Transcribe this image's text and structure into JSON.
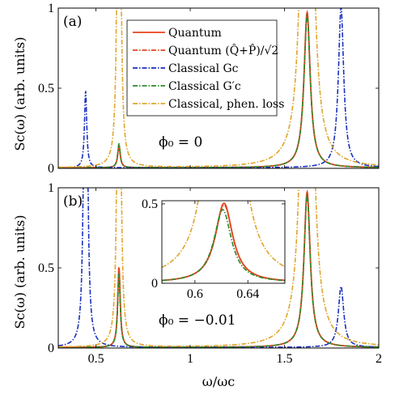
{
  "chart_data": [
    {
      "type": "line",
      "panel_label": "(a)",
      "annotation": "ϕ₀ = 0",
      "xlabel": "ω/ωc",
      "ylabel": "Sc(ω) (arb. units)",
      "xlim": [
        0.3,
        2.0
      ],
      "ylim": [
        0,
        1.0
      ],
      "y_ticks": [
        "0",
        "0.5",
        "1"
      ],
      "x_ticks": [],
      "grid": false,
      "legend_position": "top-center",
      "legend": [
        {
          "label": "Quantum",
          "color": "#e8431d",
          "style": "solid"
        },
        {
          "label": "Quantum (Q̂+P̂)/√2",
          "color": "#e8431d",
          "style": "dashdot"
        },
        {
          "label": "Classical Gc",
          "color": "#1a2fbf",
          "style": "dashdot"
        },
        {
          "label": "Classical G′c",
          "color": "#2a8a2a",
          "style": "dashdot"
        },
        {
          "label": "Classical, phen. loss",
          "color": "#e0a52b",
          "style": "dashdot"
        }
      ],
      "series": [
        {
          "name": "Quantum",
          "color": "#e8431d",
          "peaks": [
            {
              "x0": 0.622,
              "height": 0.14,
              "gamma": 0.008
            },
            {
              "x0": 1.62,
              "height": 0.97,
              "gamma": 0.02
            }
          ]
        },
        {
          "name": "Quantum (Q̂+P̂)/√2",
          "color": "#e8431d",
          "peaks": [
            {
              "x0": 0.622,
              "height": 0.14,
              "gamma": 0.008
            },
            {
              "x0": 1.62,
              "height": 0.96,
              "gamma": 0.02
            }
          ]
        },
        {
          "name": "Classical Gc",
          "color": "#1a2fbf",
          "peaks": [
            {
              "x0": 0.445,
              "height": 0.48,
              "gamma": 0.007
            },
            {
              "x0": 1.8,
              "height": 1.0,
              "gamma": 0.017
            }
          ]
        },
        {
          "name": "Classical G′c",
          "color": "#2a8a2a",
          "peaks": [
            {
              "x0": 0.622,
              "height": 0.15,
              "gamma": 0.008
            },
            {
              "x0": 1.62,
              "height": 0.95,
              "gamma": 0.02
            }
          ]
        },
        {
          "name": "Classical, phen. loss",
          "color": "#e0a52b",
          "peaks": [
            {
              "x0": 0.622,
              "height": 6.0,
              "gamma": 0.006
            },
            {
              "x0": 1.62,
              "height": 6.0,
              "gamma": 0.02
            }
          ]
        }
      ]
    },
    {
      "type": "line",
      "panel_label": "(b)",
      "annotation": "ϕ₀ = −0.01",
      "xlabel": "ω/ωc",
      "ylabel": "Sc(ω) (arb. units)",
      "xlim": [
        0.3,
        2.0
      ],
      "ylim": [
        0,
        1.0
      ],
      "y_ticks": [
        "0",
        "0.5",
        "1"
      ],
      "x_ticks": [
        "0.5",
        "1",
        "1.5",
        "2"
      ],
      "grid": false,
      "series": [
        {
          "name": "Quantum",
          "color": "#e8431d",
          "peaks": [
            {
              "x0": 0.622,
              "height": 0.5,
              "gamma": 0.008
            },
            {
              "x0": 1.62,
              "height": 0.97,
              "gamma": 0.02
            }
          ]
        },
        {
          "name": "Quantum (Q̂+P̂)/√2",
          "color": "#e8431d",
          "peaks": [
            {
              "x0": 0.622,
              "height": 0.49,
              "gamma": 0.008
            },
            {
              "x0": 1.62,
              "height": 0.96,
              "gamma": 0.02
            }
          ]
        },
        {
          "name": "Classical Gc",
          "color": "#1a2fbf",
          "peaks": [
            {
              "x0": 0.445,
              "height": 6.0,
              "gamma": 0.006
            },
            {
              "x0": 1.8,
              "height": 0.38,
              "gamma": 0.017
            }
          ]
        },
        {
          "name": "Classical G′c",
          "color": "#2a8a2a",
          "peaks": [
            {
              "x0": 0.622,
              "height": 0.46,
              "gamma": 0.008
            },
            {
              "x0": 1.62,
              "height": 0.95,
              "gamma": 0.02
            }
          ]
        },
        {
          "name": "Classical, phen. loss",
          "color": "#e0a52b",
          "peaks": [
            {
              "x0": 0.622,
              "height": 6.0,
              "gamma": 0.006
            },
            {
              "x0": 1.62,
              "height": 6.0,
              "gamma": 0.02
            }
          ]
        }
      ]
    },
    {
      "type": "line",
      "panel_label": "inset",
      "xlim": [
        0.575,
        0.668
      ],
      "ylim": [
        0,
        0.52
      ],
      "y_ticks": [
        "0",
        "0.5"
      ],
      "x_ticks": [
        "0.6",
        "0.64"
      ],
      "grid": false,
      "series": [
        {
          "name": "Quantum",
          "color": "#e8431d",
          "peaks": [
            {
              "x0": 0.622,
              "height": 0.5,
              "gamma": 0.008
            }
          ]
        },
        {
          "name": "Quantum (Q̂+P̂)/√2",
          "color": "#e8431d",
          "peaks": [
            {
              "x0": 0.622,
              "height": 0.49,
              "gamma": 0.008
            }
          ]
        },
        {
          "name": "Classical G′c",
          "color": "#2a8a2a",
          "peaks": [
            {
              "x0": 0.621,
              "height": 0.46,
              "gamma": 0.008
            }
          ]
        },
        {
          "name": "Classical, phen. loss",
          "color": "#e0a52b",
          "peaks": [
            {
              "x0": 0.622,
              "height": 6.0,
              "gamma": 0.006
            }
          ]
        }
      ]
    }
  ]
}
